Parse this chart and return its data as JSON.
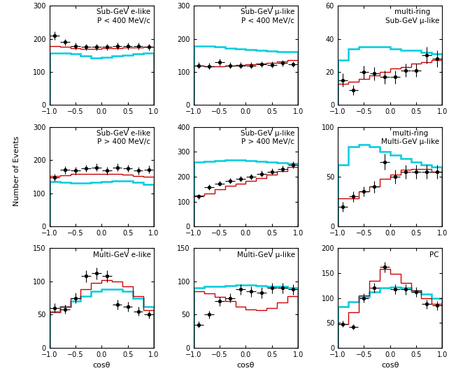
{
  "panels": [
    {
      "title": "Sub-GeV e-like\nP < 400 MeV/c",
      "ylim": [
        0,
        300
      ],
      "yticks": [
        0,
        100,
        200,
        300
      ],
      "cyan_hist": [
        158,
        158,
        155,
        148,
        143,
        145,
        148,
        150,
        155,
        158
      ],
      "red_hist": [
        178,
        175,
        172,
        170,
        170,
        171,
        172,
        173,
        174,
        175
      ],
      "data_y": [
        210,
        190,
        178,
        175,
        175,
        175,
        178,
        178,
        178,
        175
      ],
      "data_ey": [
        13,
        10,
        10,
        10,
        10,
        10,
        10,
        10,
        10,
        10
      ]
    },
    {
      "title": "Sub-GeV μ-like\nP < 400 MeV/c",
      "ylim": [
        0,
        300
      ],
      "yticks": [
        0,
        100,
        200,
        300
      ],
      "cyan_hist": [
        178,
        178,
        175,
        172,
        170,
        168,
        165,
        163,
        162,
        162
      ],
      "red_hist": [
        120,
        118,
        118,
        120,
        122,
        124,
        126,
        128,
        132,
        136
      ],
      "data_y": [
        120,
        118,
        130,
        120,
        120,
        120,
        123,
        122,
        127,
        123
      ],
      "data_ey": [
        9,
        9,
        10,
        9,
        9,
        9,
        9,
        9,
        9,
        9
      ]
    },
    {
      "title": "multi-ring\nSub-GeV μ-like",
      "ylim": [
        0,
        60
      ],
      "yticks": [
        0,
        20,
        40,
        60
      ],
      "cyan_hist": [
        27,
        34,
        35,
        35,
        35,
        34,
        33,
        33,
        32,
        31
      ],
      "red_hist": [
        13,
        14,
        16,
        18,
        20,
        22,
        23,
        25,
        26,
        27
      ],
      "data_y": [
        15,
        9,
        20,
        19,
        17,
        17,
        21,
        21,
        30,
        28
      ],
      "data_ey": [
        4,
        3,
        4,
        4,
        4,
        4,
        4,
        4,
        5,
        5
      ]
    },
    {
      "title": "Sub-GeV e-like\nP > 400 MeV/c",
      "ylim": [
        0,
        300
      ],
      "yticks": [
        0,
        100,
        200,
        300
      ],
      "cyan_hist": [
        135,
        133,
        130,
        130,
        132,
        135,
        137,
        138,
        132,
        126
      ],
      "red_hist": [
        152,
        155,
        158,
        158,
        158,
        158,
        158,
        157,
        152,
        150
      ],
      "data_y": [
        148,
        170,
        168,
        175,
        178,
        168,
        178,
        175,
        168,
        172
      ],
      "data_ey": [
        10,
        11,
        11,
        11,
        11,
        11,
        11,
        11,
        11,
        11
      ]
    },
    {
      "title": "Sub-GeV μ-like\nP > 400 MeV/c",
      "ylim": [
        0,
        400
      ],
      "yticks": [
        0,
        100,
        200,
        300,
        400
      ],
      "cyan_hist": [
        258,
        262,
        265,
        268,
        268,
        265,
        262,
        258,
        255,
        252
      ],
      "red_hist": [
        125,
        133,
        148,
        162,
        172,
        182,
        195,
        208,
        222,
        238
      ],
      "data_y": [
        120,
        158,
        173,
        183,
        192,
        200,
        212,
        220,
        232,
        248
      ],
      "data_ey": [
        10,
        11,
        11,
        12,
        12,
        12,
        13,
        13,
        13,
        14
      ]
    },
    {
      "title": "multi-ring\nMulti-GeV μ-like",
      "ylim": [
        0,
        100
      ],
      "yticks": [
        0,
        50,
        100
      ],
      "cyan_hist": [
        62,
        80,
        82,
        80,
        75,
        72,
        68,
        65,
        62,
        60
      ],
      "red_hist": [
        28,
        28,
        35,
        40,
        48,
        52,
        57,
        58,
        58,
        55
      ],
      "data_y": [
        20,
        30,
        35,
        40,
        65,
        50,
        55,
        55,
        55,
        55
      ],
      "data_ey": [
        5,
        5,
        5,
        6,
        8,
        7,
        7,
        7,
        7,
        7
      ]
    },
    {
      "title": "Multi-GeV e-like",
      "ylim": [
        0,
        150
      ],
      "yticks": [
        0,
        50,
        100,
        150
      ],
      "cyan_hist": [
        55,
        62,
        70,
        78,
        85,
        88,
        88,
        85,
        75,
        62
      ],
      "red_hist": [
        53,
        62,
        75,
        88,
        98,
        102,
        100,
        93,
        78,
        57
      ],
      "data_y": [
        60,
        58,
        75,
        108,
        112,
        108,
        65,
        62,
        55,
        50
      ],
      "data_ey": [
        7,
        7,
        8,
        9,
        9,
        9,
        7,
        7,
        7,
        6
      ]
    },
    {
      "title": "Multi-GeV μ-like",
      "ylim": [
        0,
        150
      ],
      "yticks": [
        0,
        50,
        100,
        150
      ],
      "cyan_hist": [
        90,
        92,
        93,
        94,
        95,
        95,
        94,
        93,
        92,
        90
      ],
      "red_hist": [
        85,
        82,
        77,
        70,
        62,
        58,
        57,
        60,
        68,
        78
      ],
      "data_y": [
        35,
        50,
        70,
        75,
        88,
        85,
        83,
        90,
        90,
        88
      ],
      "data_ey": [
        5,
        6,
        7,
        7,
        8,
        8,
        8,
        8,
        8,
        8
      ]
    },
    {
      "title": "PC",
      "ylim": [
        0,
        200
      ],
      "yticks": [
        0,
        50,
        100,
        150,
        200
      ],
      "cyan_hist": [
        82,
        92,
        102,
        112,
        120,
        122,
        120,
        115,
        108,
        100
      ],
      "red_hist": [
        48,
        72,
        105,
        135,
        158,
        148,
        130,
        115,
        100,
        88
      ],
      "data_y": [
        48,
        42,
        100,
        120,
        162,
        118,
        117,
        112,
        88,
        85
      ],
      "data_ey": [
        6,
        6,
        9,
        10,
        11,
        10,
        10,
        10,
        9,
        9
      ]
    }
  ],
  "bins": [
    -1.0,
    -0.8,
    -0.6,
    -0.4,
    -0.2,
    0.0,
    0.2,
    0.4,
    0.6,
    0.8,
    1.0
  ],
  "xlabel": "cosθ",
  "ylabel": "Number of Events",
  "cyan_color": "#00CCDD",
  "red_color": "#CC0000",
  "data_color": "black",
  "bg_color": "#ffffff",
  "title_fontsize": 7.5,
  "label_fontsize": 8,
  "tick_fontsize": 7
}
